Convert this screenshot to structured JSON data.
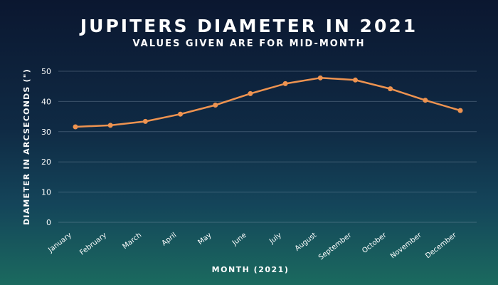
{
  "chart_data": {
    "type": "line",
    "title": "Jupiters Diameter in 2021",
    "subtitle": "Values given are for mid-month",
    "xlabel": "Month (2021)",
    "ylabel": "Diameter in arcseconds (\")",
    "categories": [
      "January",
      "February",
      "March",
      "April",
      "May",
      "June",
      "July",
      "August",
      "September",
      "October",
      "November",
      "December"
    ],
    "series": [
      {
        "values": [
          31.6,
          32.1,
          33.4,
          35.8,
          38.8,
          42.6,
          45.9,
          47.8,
          47.1,
          44.2,
          40.4,
          37.0
        ]
      }
    ],
    "yticks": [
      "0",
      "10",
      "20",
      "30",
      "40",
      "50"
    ],
    "ylim": [
      0,
      50
    ],
    "grid": true,
    "legend": "none",
    "colors": {
      "line": "#ee9350",
      "text": "#ffffff",
      "grid": "#8fa3b8"
    }
  }
}
